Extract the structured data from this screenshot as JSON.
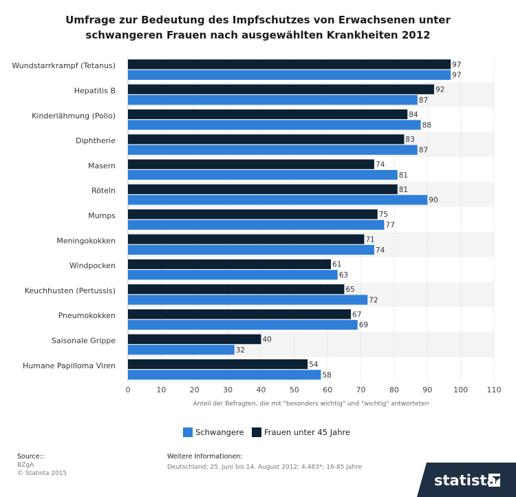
{
  "chart_data": {
    "type": "bar",
    "orientation": "horizontal",
    "title": "Umfrage zur Bedeutung des Impfschutzes von Erwachsenen unter schwangeren Frauen nach ausgewählten Krankheiten 2012",
    "title_lines": [
      "Umfrage zur Bedeutung des Impfschutzes von Erwachsenen unter",
      "schwangeren Frauen nach ausgewählten Krankheiten 2012"
    ],
    "categories": [
      "Wundstarrkrampf (Tetanus)",
      "Hepatitis B",
      "Kinderlähmung (Polio)",
      "Diphtherie",
      "Masern",
      "Röteln",
      "Mumps",
      "Meningokokken",
      "Windpocken",
      "Keuchhusten (Pertussis)",
      "Pneumokokken",
      "Saisonale Grippe",
      "Humane Papilloma Viren"
    ],
    "series": [
      {
        "name": "Frauen unter 45 Jahre",
        "color": "#0d2134",
        "values": [
          97,
          92,
          84,
          83,
          74,
          81,
          75,
          71,
          61,
          65,
          67,
          40,
          54
        ]
      },
      {
        "name": "Schwangere",
        "color": "#2f7ed8",
        "values": [
          97,
          87,
          88,
          87,
          81,
          90,
          77,
          74,
          63,
          72,
          69,
          32,
          58
        ]
      }
    ],
    "xlabel": "Anteil der Befragten, die mit \"besonders wichtig\" und \"wichtig\" antworteten",
    "ylabel": "",
    "xlim": [
      0,
      110
    ],
    "xticks": [
      0,
      10,
      20,
      30,
      40,
      50,
      60,
      70,
      80,
      90,
      100,
      110
    ],
    "grid": true,
    "legend_position": "bottom",
    "legend_order": [
      "Schwangere",
      "Frauen unter 45 Jahre"
    ]
  },
  "footer": {
    "source_label": "Source::",
    "source_lines": [
      "BZgA",
      "© Statista 2015"
    ],
    "info_label": "Weitere Informationen:",
    "info_text": "Deutschland; 25. Juni bis 14. August 2012; 4.483*; 16-85 Jahre"
  },
  "brand": {
    "logo_text": "statista",
    "logo_icon": "statista-logo-icon",
    "logo_bg": "#1f3044"
  }
}
